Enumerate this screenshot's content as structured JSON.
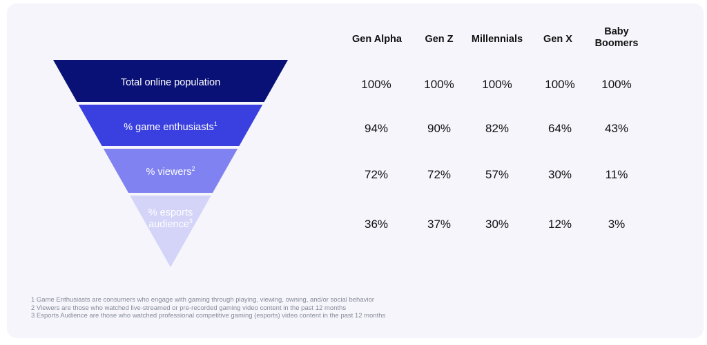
{
  "chart_data": {
    "type": "table",
    "funnel_stages": [
      {
        "label": "Total online population",
        "sup": "",
        "color": "#0a1176",
        "text_color": "#ffffff"
      },
      {
        "label": "% game enthusiasts",
        "sup": "1",
        "color": "#3a3fe0",
        "text_color": "#ffffff"
      },
      {
        "label": "% viewers",
        "sup": "2",
        "color": "#7f82f0",
        "text_color": "#ffffff"
      },
      {
        "label": "% esports",
        "label2": "audience",
        "sup": "3",
        "color": "#d3d4f8",
        "text_color": "#ffffff"
      }
    ],
    "columns": [
      "Gen Alpha",
      "Gen Z",
      "Millennials",
      "Gen X",
      "Baby Boomers"
    ],
    "rows": [
      [
        "100%",
        "100%",
        "100%",
        "100%",
        "100%"
      ],
      [
        "94%",
        "90%",
        "82%",
        "64%",
        "43%"
      ],
      [
        "72%",
        "72%",
        "57%",
        "30%",
        "11%"
      ],
      [
        "36%",
        "37%",
        "30%",
        "12%",
        "3%"
      ]
    ],
    "values": [
      [
        100,
        100,
        100,
        100,
        100
      ],
      [
        94,
        90,
        82,
        64,
        43
      ],
      [
        72,
        72,
        57,
        30,
        11
      ],
      [
        36,
        37,
        30,
        12,
        3
      ]
    ]
  },
  "footnotes": [
    "1 Game Enthusiasts are consumers who engage with gaming through playing, viewing, owning, and/or social behavior",
    "2 Viewers are those who watched live-streamed or pre-recorded gaming video content in the past 12 months",
    "3 Esports Audience are those who watched professional competitive gaming (esports) video content in the past 12 months"
  ]
}
